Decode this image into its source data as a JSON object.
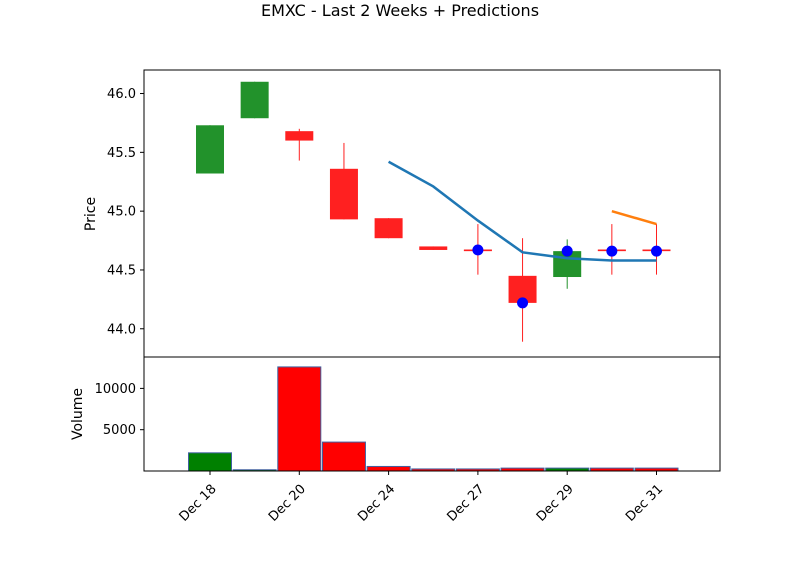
{
  "chart_data": {
    "type": "candlestick",
    "title": "EMXC - Last 2 Weeks + Predictions",
    "xlabel": "",
    "grid": false,
    "legend": "none",
    "x_tick_labels": [
      "Dec 18",
      "Dec 20",
      "Dec 24",
      "Dec 27",
      "Dec 29",
      "Dec 31"
    ],
    "price_panel": {
      "ylabel": "Price",
      "ylim": [
        43.76,
        46.2
      ],
      "y_ticks": [
        44.0,
        44.5,
        45.0,
        45.5,
        46.0
      ],
      "y_tick_labels": [
        "44.0",
        "44.5",
        "45.0",
        "45.5",
        "46.0"
      ],
      "candles": [
        {
          "direction": "up",
          "open": 45.32,
          "close": 45.73,
          "high": 45.73,
          "low": 45.32
        },
        {
          "direction": "up",
          "open": 45.79,
          "close": 46.1,
          "high": 46.1,
          "low": 45.79
        },
        {
          "direction": "down",
          "open": 45.68,
          "close": 45.6,
          "high": 45.7,
          "low": 45.43
        },
        {
          "direction": "down",
          "open": 45.36,
          "close": 44.93,
          "high": 45.58,
          "low": 44.93
        },
        {
          "direction": "down",
          "open": 44.94,
          "close": 44.77,
          "high": 44.94,
          "low": 44.77
        },
        {
          "direction": "down",
          "open": 44.7,
          "close": 44.67,
          "high": 44.7,
          "low": 44.67
        },
        {
          "direction": "down",
          "open": 44.67,
          "close": 44.66,
          "high": 44.89,
          "low": 44.46
        },
        {
          "direction": "down",
          "open": 44.45,
          "close": 44.22,
          "high": 44.77,
          "low": 43.89
        },
        {
          "direction": "up",
          "open": 44.44,
          "close": 44.66,
          "high": 44.76,
          "low": 44.34
        },
        {
          "direction": "down",
          "open": 44.67,
          "close": 44.66,
          "high": 44.89,
          "low": 44.46
        },
        {
          "direction": "down",
          "open": 44.67,
          "close": 44.66,
          "high": 44.89,
          "low": 44.46
        }
      ],
      "markers": [
        {
          "index": 6,
          "value": 44.67
        },
        {
          "index": 7,
          "value": 44.22
        },
        {
          "index": 8,
          "value": 44.66
        },
        {
          "index": 9,
          "value": 44.66
        },
        {
          "index": 10,
          "value": 44.66
        }
      ],
      "series": [
        {
          "color": "#1f77b4",
          "points": [
            [
              4,
              45.42
            ],
            [
              5,
              45.21
            ],
            [
              6,
              44.92
            ],
            [
              7,
              44.65
            ],
            [
              8,
              44.6
            ],
            [
              9,
              44.58
            ],
            [
              10,
              44.58
            ]
          ]
        },
        {
          "color": "#ff7f0e",
          "points": [
            [
              9,
              45.0
            ],
            [
              10,
              44.89
            ]
          ]
        }
      ]
    },
    "volume_panel": {
      "ylabel": "Volume",
      "ylim": [
        0,
        13800
      ],
      "y_ticks": [
        5000,
        10000
      ],
      "y_tick_labels": [
        "5000",
        "10000"
      ],
      "bars": [
        {
          "direction": "up",
          "value": 2200
        },
        {
          "direction": "up",
          "value": 150
        },
        {
          "direction": "down",
          "value": 12600
        },
        {
          "direction": "down",
          "value": 3500
        },
        {
          "direction": "down",
          "value": 550
        },
        {
          "direction": "down",
          "value": 250
        },
        {
          "direction": "down",
          "value": 250
        },
        {
          "direction": "down",
          "value": 350
        },
        {
          "direction": "up",
          "value": 350
        },
        {
          "direction": "down",
          "value": 350
        },
        {
          "direction": "down",
          "value": 350
        }
      ]
    },
    "colors": {
      "up": "#008000",
      "down": "#ff0000",
      "candle_up": "#22922b",
      "candle_down": "#ff2020",
      "marker": "#0000ff",
      "edge": "#000000",
      "volume_edge": "#4060a0"
    }
  }
}
